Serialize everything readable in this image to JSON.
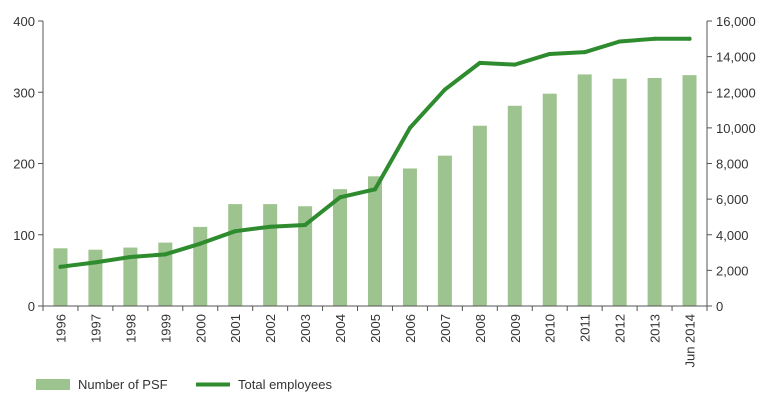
{
  "chart_data": {
    "type": "bar",
    "categories": [
      "1996",
      "1997",
      "1998",
      "1999",
      "2000",
      "2001",
      "2002",
      "2003",
      "2004",
      "2005",
      "2006",
      "2007",
      "2008",
      "2009",
      "2010",
      "2011",
      "2012",
      "2013",
      "Jun 2014"
    ],
    "series": [
      {
        "name": "Number of PSF",
        "type": "bar",
        "axis": "left",
        "color": "#9dc38f",
        "values": [
          81,
          79,
          82,
          89,
          111,
          143,
          143,
          140,
          164,
          182,
          193,
          211,
          253,
          281,
          298,
          325,
          319,
          320,
          324
        ]
      },
      {
        "name": "Total employees",
        "type": "line",
        "axis": "right",
        "color": "#2e8b2e",
        "values": [
          2200,
          2450,
          2750,
          2900,
          3500,
          4200,
          4450,
          4550,
          6100,
          6550,
          10000,
          12150,
          13650,
          13550,
          14150,
          14250,
          14850,
          15000,
          15000
        ]
      }
    ],
    "y_left": {
      "ylim": [
        0,
        400
      ],
      "ticks": [
        "0",
        "100",
        "200",
        "300",
        "400"
      ]
    },
    "y_right": {
      "ylim": [
        0,
        16000
      ],
      "ticks": [
        "0",
        "2,000",
        "4,000",
        "6,000",
        "8,000",
        "10,000",
        "12,000",
        "14,000",
        "16,000"
      ]
    },
    "legend": {
      "placement": "bottom-left",
      "items": [
        "Number of PSF",
        "Total employees"
      ]
    },
    "grid": false
  }
}
